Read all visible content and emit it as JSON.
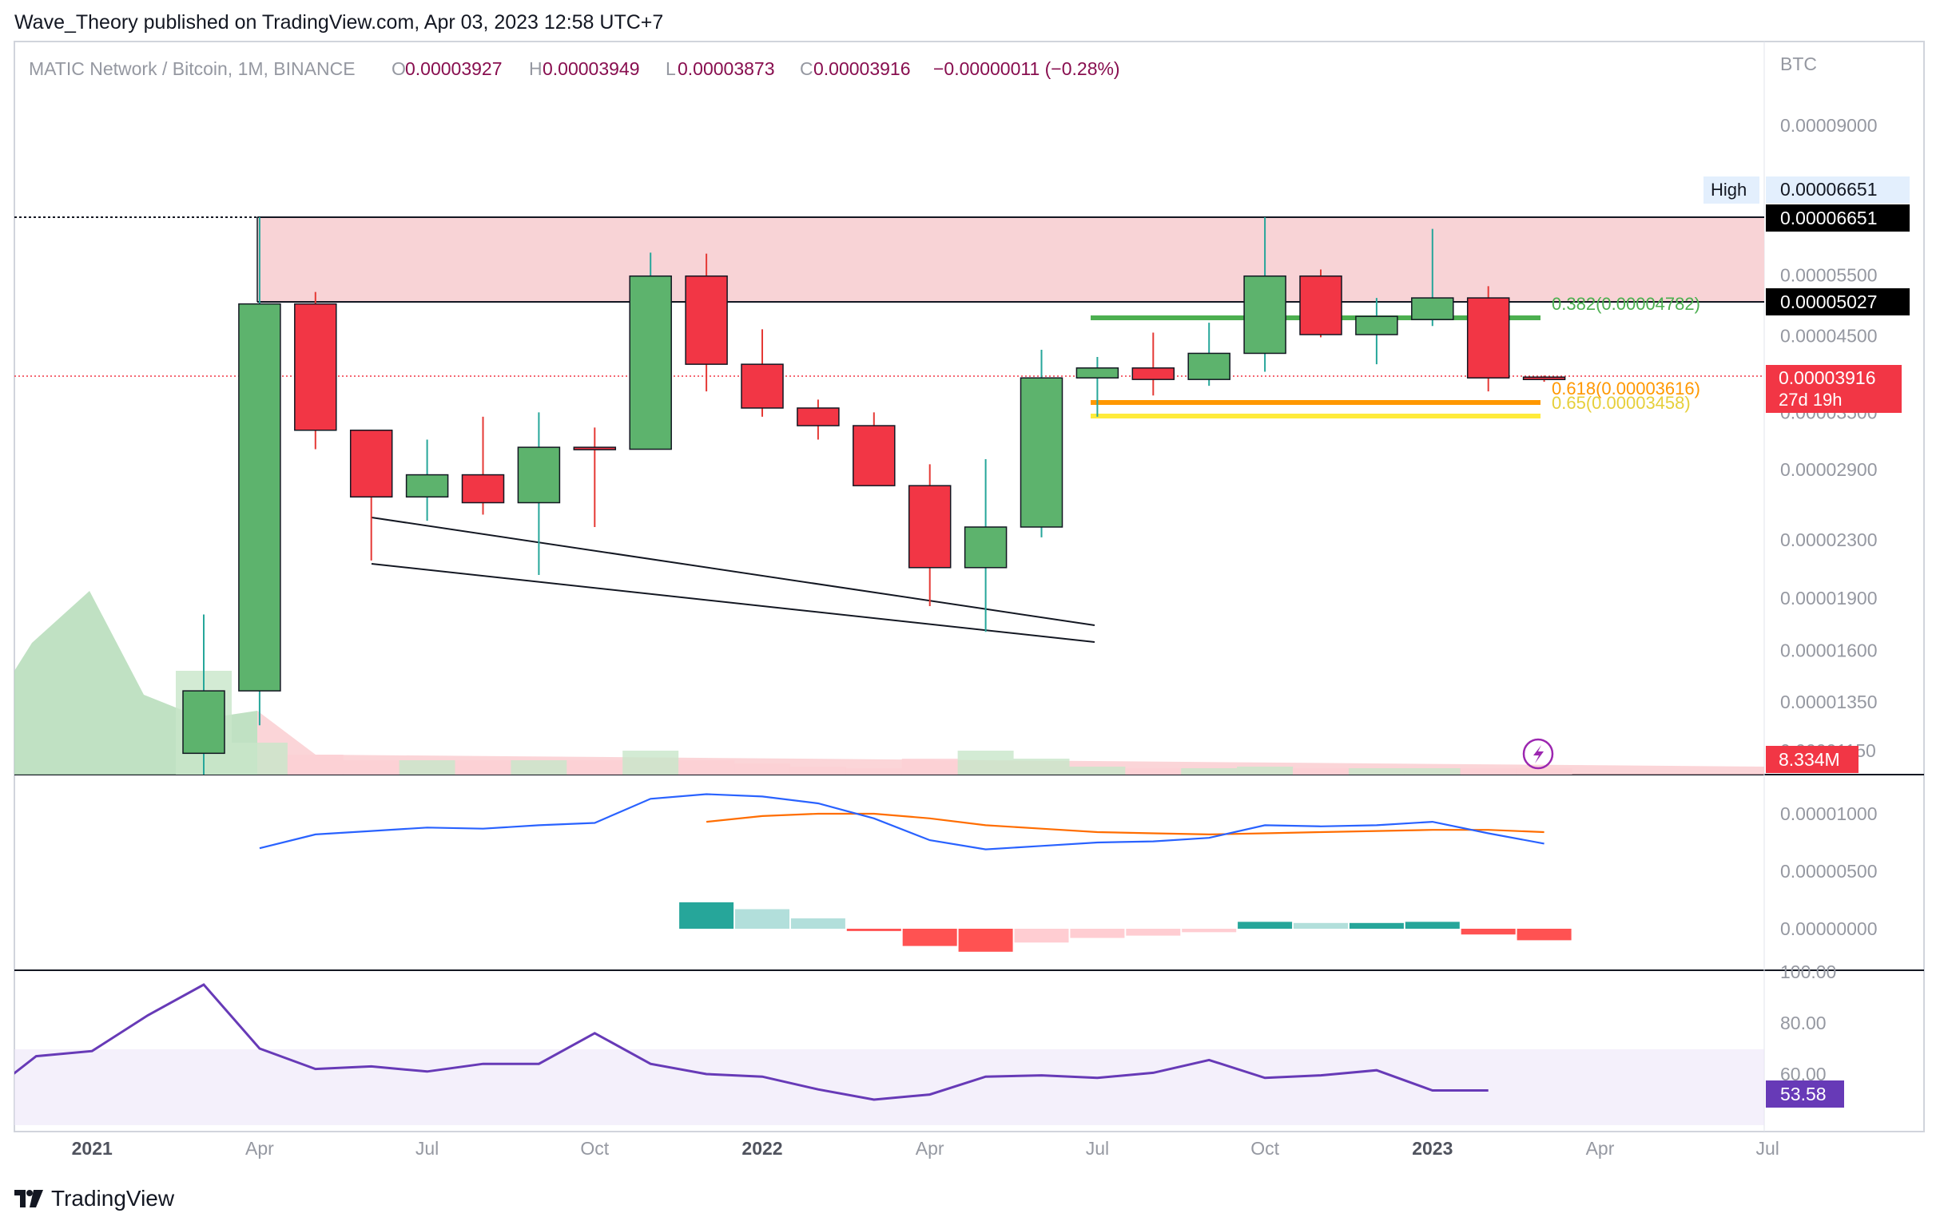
{
  "header": {
    "attribution": "Wave_Theory published on TradingView.com, Apr 03, 2023 12:58 UTC+7"
  },
  "footer": {
    "brand": "TradingView"
  },
  "colors": {
    "up": "#5db36d",
    "down": "#f23645",
    "zone": "#f8d3d6",
    "macd": "#2962ff",
    "signal": "#ff6d00",
    "rsi": "#673ab7"
  },
  "chart_data": [
    {
      "type": "candlestick",
      "symbol_label": "MATIC Network / Bitcoin, 1M, BINANCE",
      "ohlc_readout": {
        "o_label": "O",
        "o": "0.00003927",
        "h_label": "H",
        "h": "0.00003949",
        "l_label": "L",
        "l": "0.00003873",
        "c_label": "C",
        "c": "0.00003916",
        "change": "−0.00000011 (−0.28%)"
      },
      "currency": "BTC",
      "scale": "log",
      "y_ticks": [
        "0.00009000",
        "0.00005500",
        "0.00004500",
        "0.00003500",
        "0.00002900",
        "0.00002300",
        "0.00001900",
        "0.00001600",
        "0.00001350",
        "0.00001150"
      ],
      "x_ticks": [
        "2021",
        "Apr",
        "Jul",
        "Oct",
        "2022",
        "Apr",
        "Jul",
        "Oct",
        "2023",
        "Apr",
        "Jul"
      ],
      "candles": [
        {
          "t": "2021-03",
          "o": 1.14e-05,
          "h": 1.8e-05,
          "l": 1e-05,
          "c": 1.4e-05
        },
        {
          "t": "2021-04",
          "o": 1.4e-05,
          "h": 6.65e-05,
          "l": 1.25e-05,
          "c": 5e-05
        },
        {
          "t": "2021-05",
          "o": 5e-05,
          "h": 5.2e-05,
          "l": 3.1e-05,
          "c": 3.3e-05
        },
        {
          "t": "2021-06",
          "o": 3.3e-05,
          "h": 3.3e-05,
          "l": 2.15e-05,
          "c": 2.65e-05
        },
        {
          "t": "2021-07",
          "o": 2.65e-05,
          "h": 3.2e-05,
          "l": 2.45e-05,
          "c": 2.85e-05
        },
        {
          "t": "2021-08",
          "o": 2.85e-05,
          "h": 3.45e-05,
          "l": 2.5e-05,
          "c": 2.6e-05
        },
        {
          "t": "2021-09",
          "o": 2.6e-05,
          "h": 3.5e-05,
          "l": 2.05e-05,
          "c": 3.12e-05
        },
        {
          "t": "2021-10",
          "o": 3.12e-05,
          "h": 3.33e-05,
          "l": 2.4e-05,
          "c": 3.1e-05
        },
        {
          "t": "2021-11",
          "o": 3.1e-05,
          "h": 5.92e-05,
          "l": 3.1e-05,
          "c": 5.48e-05
        },
        {
          "t": "2021-12",
          "o": 5.48e-05,
          "h": 5.9e-05,
          "l": 3.75e-05,
          "c": 4.1e-05
        },
        {
          "t": "2022-01",
          "o": 4.1e-05,
          "h": 4.6e-05,
          "l": 3.45e-05,
          "c": 3.55e-05
        },
        {
          "t": "2022-02",
          "o": 3.55e-05,
          "h": 3.65e-05,
          "l": 3.2e-05,
          "c": 3.35e-05
        },
        {
          "t": "2022-03",
          "o": 3.35e-05,
          "h": 3.5e-05,
          "l": 2.75e-05,
          "c": 2.75e-05
        },
        {
          "t": "2022-04",
          "o": 2.75e-05,
          "h": 2.95e-05,
          "l": 1.85e-05,
          "c": 2.1e-05
        },
        {
          "t": "2022-05",
          "o": 2.1e-05,
          "h": 3e-05,
          "l": 1.7e-05,
          "c": 2.4e-05
        },
        {
          "t": "2022-06",
          "o": 2.4e-05,
          "h": 4.3e-05,
          "l": 2.32e-05,
          "c": 3.92e-05
        },
        {
          "t": "2022-07",
          "o": 3.92e-05,
          "h": 4.2e-05,
          "l": 3.45e-05,
          "c": 4.05e-05
        },
        {
          "t": "2022-08",
          "o": 4.05e-05,
          "h": 4.55e-05,
          "l": 3.7e-05,
          "c": 3.9e-05
        },
        {
          "t": "2022-09",
          "o": 3.9e-05,
          "h": 4.7e-05,
          "l": 3.82e-05,
          "c": 4.25e-05
        },
        {
          "t": "2022-10",
          "o": 4.25e-05,
          "h": 6.65e-05,
          "l": 4e-05,
          "c": 5.48e-05
        },
        {
          "t": "2022-11",
          "o": 5.48e-05,
          "h": 5.6e-05,
          "l": 4.48e-05,
          "c": 4.52e-05
        },
        {
          "t": "2022-12",
          "o": 4.52e-05,
          "h": 5.1e-05,
          "l": 4.1e-05,
          "c": 4.8e-05
        },
        {
          "t": "2023-01",
          "o": 4.75e-05,
          "h": 6.4e-05,
          "l": 4.65e-05,
          "c": 5.1e-05
        },
        {
          "t": "2023-02",
          "o": 5.1e-05,
          "h": 5.3e-05,
          "l": 3.75e-05,
          "c": 3.92e-05
        },
        {
          "t": "2023-03",
          "o": 3.93e-05,
          "h": 3.95e-05,
          "l": 3.87e-05,
          "c": 3.92e-05
        }
      ],
      "horizontal_levels": [
        {
          "label": "High",
          "value": "0.00006651"
        },
        {
          "label": "",
          "value": "0.00006651"
        },
        {
          "label": "",
          "value": "0.00005027"
        }
      ],
      "fib_levels": [
        {
          "ratio": "0.382",
          "value": "0.00004782",
          "color": "#4caf50"
        },
        {
          "ratio": "0.618",
          "value": "0.00003616",
          "color": "#ff9800"
        },
        {
          "ratio": "0.65",
          "value": "0.00003458",
          "color": "#ffeb3b"
        }
      ],
      "last_price": "0.00003916",
      "countdown": "27d 19h",
      "volume_label": "8.334M"
    },
    {
      "type": "line",
      "indicator": "MACD",
      "y_ticks": [
        "0.00001000",
        "0.00000500",
        "0.00000000"
      ],
      "macd": [
        7e-06,
        8.2e-06,
        8.5e-06,
        8.8e-06,
        8.7e-06,
        9e-06,
        9.2e-06,
        1.13e-05,
        1.17e-05,
        1.15e-05,
        1.09e-05,
        9.6e-06,
        7.7e-06,
        6.9e-06,
        7.2e-06,
        7.5e-06,
        7.6e-06,
        7.9e-06,
        9e-06,
        8.9e-06,
        9e-06,
        9.3e-06,
        8.3e-06,
        7.4e-06
      ],
      "signal": [
        null,
        null,
        null,
        null,
        null,
        null,
        null,
        null,
        9.3e-06,
        9.8e-06,
        1e-05,
        1e-05,
        9.6e-06,
        9e-06,
        8.7e-06,
        8.4e-06,
        8.3e-06,
        8.2e-06,
        8.3e-06,
        8.4e-06,
        8.5e-06,
        8.6e-06,
        8.6e-06,
        8.4e-06
      ],
      "histogram": [
        null,
        null,
        null,
        null,
        null,
        null,
        null,
        null,
        2.3e-06,
        1.7e-06,
        9e-07,
        -2e-07,
        -1.5e-06,
        -2e-06,
        -1.2e-06,
        -8e-07,
        -6e-07,
        -3e-07,
        6e-07,
        5e-07,
        5e-07,
        6e-07,
        -5e-07,
        -1e-06
      ]
    },
    {
      "type": "line",
      "indicator": "RSI",
      "y_ticks": [
        "100.00",
        "80.00",
        "60.00"
      ],
      "band": [
        30,
        70
      ],
      "values": [
        48,
        50,
        67,
        69,
        83,
        95,
        70,
        62,
        63,
        61,
        64,
        64,
        76,
        64,
        60,
        59,
        54,
        50,
        52,
        59,
        59.5,
        58.5,
        60.5,
        65.5,
        58.5,
        59.5,
        61.5,
        53.58,
        53.58
      ],
      "current_label": "53.58"
    }
  ]
}
